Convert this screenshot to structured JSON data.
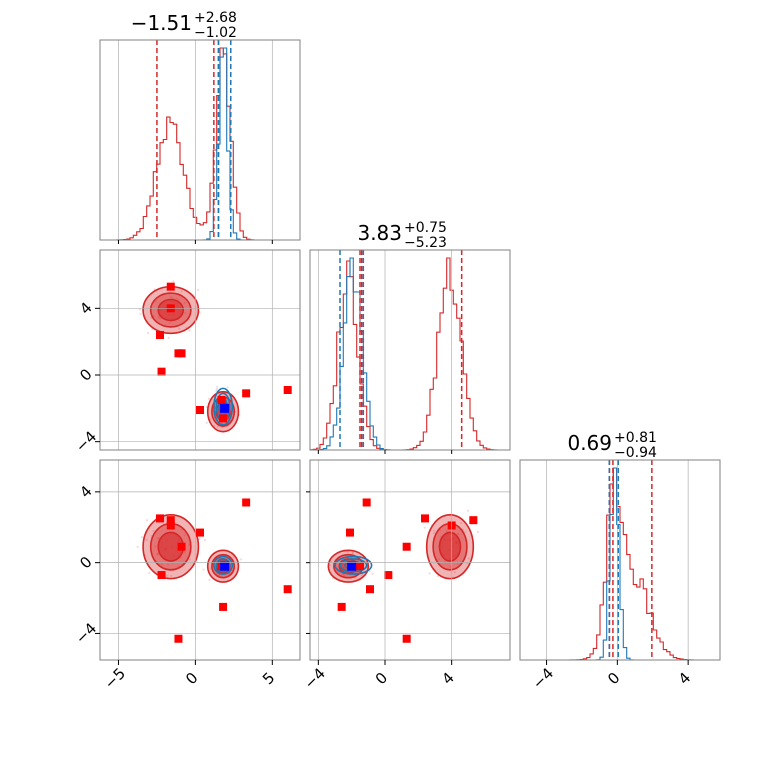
{
  "chart_data": {
    "type": "corner",
    "grid": true,
    "colors": {
      "primary": "#d62728",
      "secondary": "#1f77b4",
      "marker": "#ff0000",
      "truth": "#0000ff",
      "grid": "#b0b0b0"
    },
    "axes": {
      "p0": {
        "range": [
          -6.2,
          6.8
        ],
        "ticks": [
          -5,
          0,
          5
        ],
        "tick_labels": [
          "−5",
          "0",
          "5"
        ]
      },
      "p1": {
        "range": [
          -4.5,
          7.5
        ],
        "ticks": [
          -4,
          0,
          4
        ],
        "tick_labels": [
          "−4",
          "0",
          "4"
        ]
      },
      "p2": {
        "range": [
          -5.5,
          5.8
        ],
        "ticks": [
          -4,
          0,
          4
        ],
        "tick_labels": [
          "−4",
          "0",
          "4"
        ]
      }
    },
    "titles": [
      {
        "param": "p0",
        "median": "−1.51",
        "plus": "+2.68",
        "minus": "−1.02"
      },
      {
        "param": "p1",
        "median": "3.83",
        "plus": "+0.75",
        "minus": "−5.23"
      },
      {
        "param": "p2",
        "median": "0.69",
        "plus": "+0.81",
        "minus": "−0.94"
      }
    ],
    "quantiles": {
      "primary": {
        "p0": [
          -2.5,
          1.2,
          1.5
        ],
        "p1": [
          -1.4,
          -1.5,
          4.6
        ],
        "p2": [
          -0.25,
          -0.45,
          1.95
        ]
      },
      "secondary": {
        "p0": [
          1.5,
          2.3
        ],
        "p1": [
          -2.7,
          -1.3
        ],
        "p2": [
          -0.45,
          0.05
        ]
      }
    },
    "series": [
      {
        "role": "primary",
        "modes": [
          {
            "p0": -1.6,
            "p1": 3.9,
            "p2": 0.9,
            "s0": 0.9,
            "s1": 0.7,
            "s2": 0.9,
            "weight": 0.55
          },
          {
            "p0": 1.8,
            "p1": -2.2,
            "p2": -0.2,
            "s0": 0.5,
            "s1": 0.6,
            "s2": 0.45,
            "weight": 0.45
          }
        ]
      },
      {
        "role": "secondary",
        "modes": [
          {
            "p0": 1.8,
            "p1": -1.9,
            "p2": -0.15,
            "s0": 0.3,
            "s1": 0.55,
            "s2": 0.25,
            "weight": 1.0
          }
        ]
      }
    ],
    "markers": [
      {
        "p0": -1.6,
        "p1": 5.3,
        "p2": 2.4
      },
      {
        "p0": -1.6,
        "p1": 4.0,
        "p2": 2.1
      },
      {
        "p0": -0.9,
        "p1": 1.3,
        "p2": 0.9
      },
      {
        "p0": -2.2,
        "p1": 0.2,
        "p2": -0.7
      },
      {
        "p0": 0.3,
        "p1": -2.1,
        "p2": 1.7
      },
      {
        "p0": 1.7,
        "p1": -1.5,
        "p2": -0.2
      },
      {
        "p0": 3.3,
        "p1": -1.1,
        "p2": 3.4
      },
      {
        "p0": 6.0,
        "p1": -0.9,
        "p2": -1.5
      },
      {
        "p0": 1.8,
        "p1": -2.6,
        "p2": -2.5
      },
      {
        "p0": -1.1,
        "p1": 1.3,
        "p2": -4.3
      },
      {
        "p0": -2.3,
        "p1": 2.4,
        "p2": 2.5
      }
    ],
    "truth": {
      "p0": 1.9,
      "p1": -2.0,
      "p2": -0.2
    }
  }
}
